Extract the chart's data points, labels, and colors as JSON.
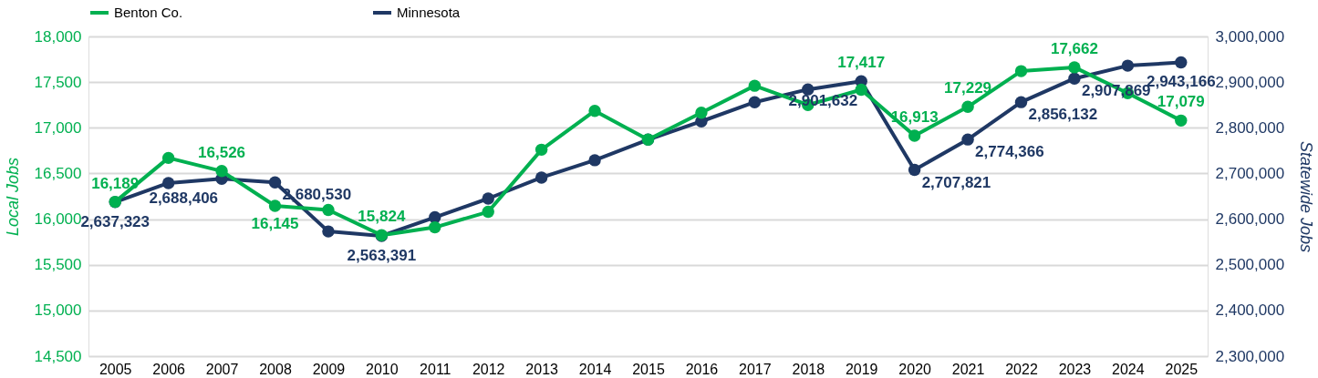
{
  "chart_data": {
    "type": "line",
    "ylabel": "Local Jobs",
    "y2label": "Statewide Jobs",
    "categories": [
      "2005",
      "2006",
      "2007",
      "2008",
      "2009",
      "2010",
      "2011",
      "2012",
      "2013",
      "2014",
      "2015",
      "2016",
      "2017",
      "2018",
      "2019",
      "2020",
      "2021",
      "2022",
      "2023",
      "2024",
      "2025"
    ],
    "series": [
      {
        "name": "Benton Co.",
        "color": "#00b050",
        "values": [
          16189,
          16670,
          16526,
          16145,
          16100,
          15824,
          15910,
          16080,
          16760,
          17185,
          16870,
          17165,
          17460,
          17250,
          17417,
          16913,
          17229,
          17620,
          17662,
          17380,
          17079
        ],
        "value_labels": [
          "16,189",
          null,
          "16,526",
          "16,145",
          null,
          "15,824",
          null,
          null,
          null,
          null,
          null,
          null,
          null,
          null,
          "17,417",
          "16,913",
          "17,229",
          null,
          "17,662",
          null,
          "17,079"
        ]
      },
      {
        "name": "Minnesota",
        "color": "#1f3864",
        "axis": "y2",
        "values": [
          2637323,
          2679000,
          2688406,
          2680530,
          2573000,
          2563391,
          2604000,
          2645000,
          2691000,
          2729000,
          2774000,
          2814000,
          2856000,
          2884000,
          2901632,
          2707821,
          2774366,
          2856132,
          2907869,
          2936000,
          2943166
        ],
        "value_labels": [
          "2,637,323",
          null,
          "2,688,406",
          "2,680,530",
          null,
          "2,563,391",
          null,
          null,
          null,
          null,
          null,
          null,
          null,
          null,
          "2,901,632",
          "2,707,821",
          "2,774,366",
          "2,856,132",
          "2,907,869",
          null,
          "2,943,166"
        ]
      }
    ],
    "ylim": [
      14500,
      18000
    ],
    "yticks": [
      {
        "value": 14500,
        "label": "14,500"
      },
      {
        "value": 15000,
        "label": "15,000"
      },
      {
        "value": 15500,
        "label": "15,500"
      },
      {
        "value": 16000,
        "label": "16,000"
      },
      {
        "value": 16500,
        "label": "16,500"
      },
      {
        "value": 17000,
        "label": "17,000"
      },
      {
        "value": 17500,
        "label": "17,500"
      },
      {
        "value": 18000,
        "label": "18,000"
      }
    ],
    "y2lim": [
      2300000,
      3000000
    ],
    "y2ticks": [
      {
        "value": 2300000,
        "label": "2,300,000"
      },
      {
        "value": 2400000,
        "label": "2,400,000"
      },
      {
        "value": 2500000,
        "label": "2,500,000"
      },
      {
        "value": 2600000,
        "label": "2,600,000"
      },
      {
        "value": 2700000,
        "label": "2,700,000"
      },
      {
        "value": 2800000,
        "label": "2,800,000"
      },
      {
        "value": 2900000,
        "label": "2,900,000"
      },
      {
        "value": 3000000,
        "label": "3,000,000"
      }
    ],
    "grid": "y",
    "legend": "top",
    "marker": "circle",
    "line_style": "solid"
  }
}
